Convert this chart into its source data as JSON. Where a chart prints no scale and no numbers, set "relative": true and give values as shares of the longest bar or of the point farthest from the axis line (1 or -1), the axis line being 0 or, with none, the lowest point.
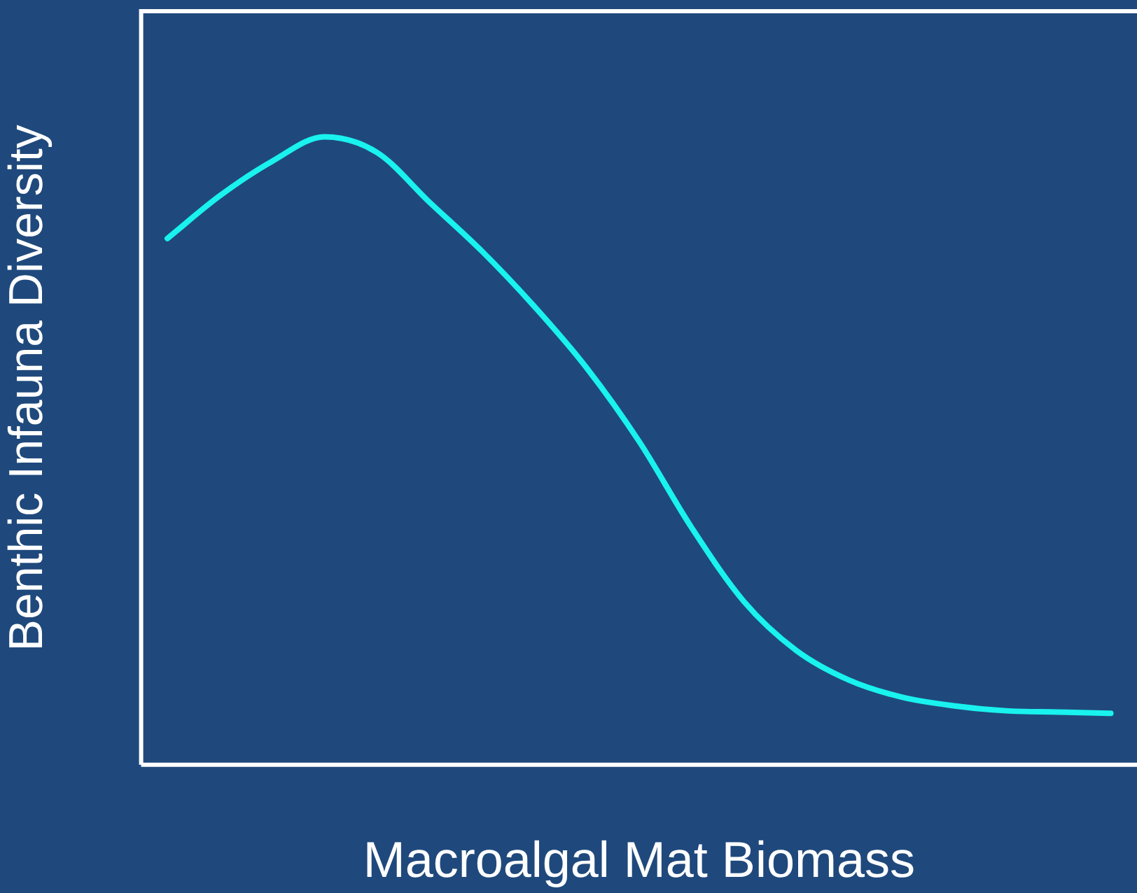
{
  "chart_data": {
    "type": "line",
    "relative": true,
    "xlabel": "Macroalgal Mat Biomass",
    "ylabel": "Benthic Infauna Diversity",
    "categories": [
      null,
      null,
      null,
      null,
      null,
      null,
      null,
      null,
      null,
      null,
      null,
      null,
      null,
      null,
      null,
      null,
      null,
      null,
      null
    ],
    "series": [
      {
        "color": "#19f2ee",
        "values": [
          0.838,
          0.906,
          0.961,
          1,
          0.975,
          0.896,
          0.818,
          0.73,
          0.632,
          0.515,
          0.378,
          0.26,
          0.182,
          0.135,
          0.108,
          0.094,
          0.086,
          0.084,
          0.082
        ]
      }
    ],
    "grid": false,
    "legend": false,
    "marker": "none",
    "line_style": "solid"
  }
}
